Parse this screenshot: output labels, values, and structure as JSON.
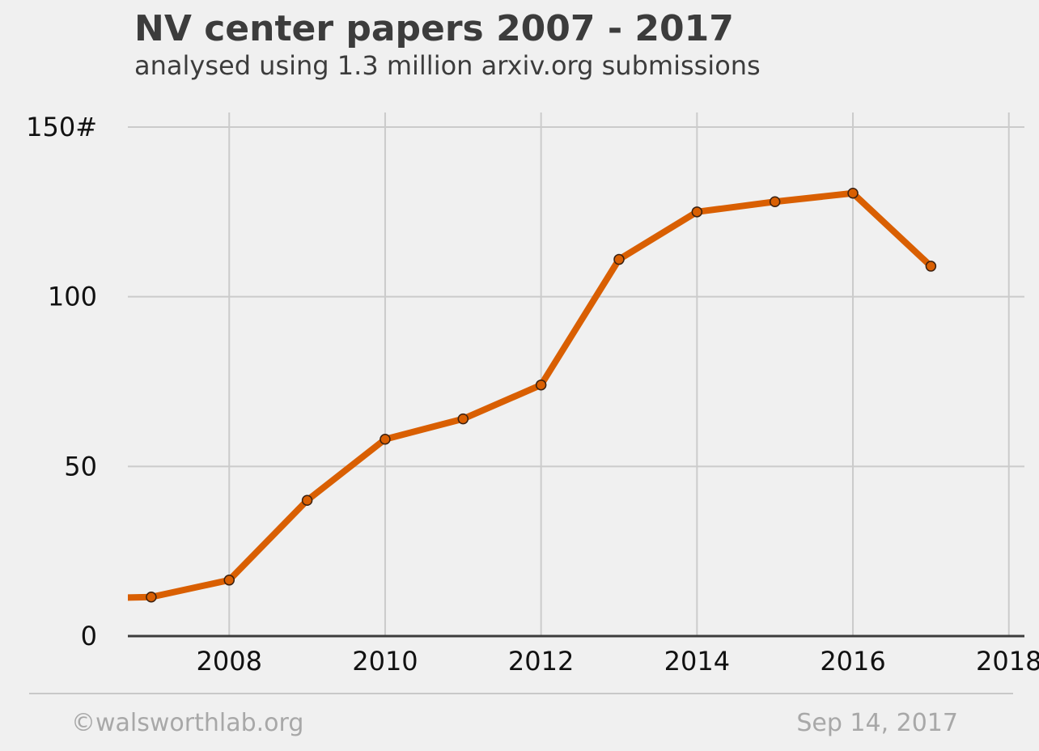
{
  "chart_data": {
    "type": "line",
    "title": "NV center papers 2007 - 2017",
    "subtitle": "analysed using 1.3 million arxiv.org submissions",
    "x": [
      2006,
      2007,
      2008,
      2009,
      2010,
      2011,
      2012,
      2013,
      2014,
      2015,
      2016,
      2017
    ],
    "y": [
      11,
      11.5,
      16.5,
      40,
      58,
      64,
      74,
      111,
      125,
      128,
      130.5,
      109
    ],
    "markers_from_index": 1,
    "xlim": [
      2006.7,
      2018.2
    ],
    "ylim": [
      0,
      150
    ],
    "x_ticks": [
      2008,
      2010,
      2012,
      2014,
      2016,
      2018
    ],
    "y_ticks": [
      0,
      50,
      100,
      150
    ],
    "y_tick_labels": [
      "0",
      "50",
      "100",
      "150#"
    ],
    "grid": true,
    "line_color": "#d95f02",
    "marker_edge_color": "#3a2010"
  },
  "footer": {
    "left": "©walsworthlab.org",
    "right": "Sep 14, 2017"
  }
}
